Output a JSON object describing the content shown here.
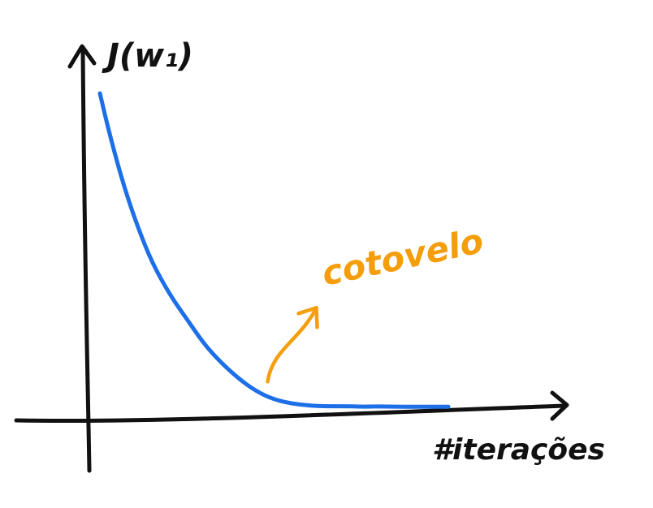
{
  "chart_data": {
    "type": "line",
    "title": "",
    "xlabel": "#iterações",
    "ylabel": "J(w₁)",
    "grid": false,
    "x": [
      0,
      0.03,
      0.07,
      0.11,
      0.15,
      0.2,
      0.25,
      0.3,
      0.35,
      0.4,
      0.45,
      0.5,
      0.55,
      0.6,
      0.65,
      0.7,
      0.75,
      0.8,
      0.85,
      0.9,
      0.95,
      1.0
    ],
    "series": [
      {
        "values": [
          1.0,
          0.86,
          0.7,
          0.57,
          0.46,
          0.36,
          0.28,
          0.2,
          0.14,
          0.09,
          0.05,
          0.025,
          0.012,
          0.006,
          0.003,
          0.004,
          0.002,
          0.003,
          0.002,
          0.002,
          0.002,
          0.002
        ]
      }
    ],
    "annotations": [
      {
        "text": "cotovelo",
        "target_x": 0.5
      }
    ],
    "colors": {
      "curve": "#1d6fe8",
      "axes": "#111111",
      "annotation": "#f59e0b"
    }
  }
}
